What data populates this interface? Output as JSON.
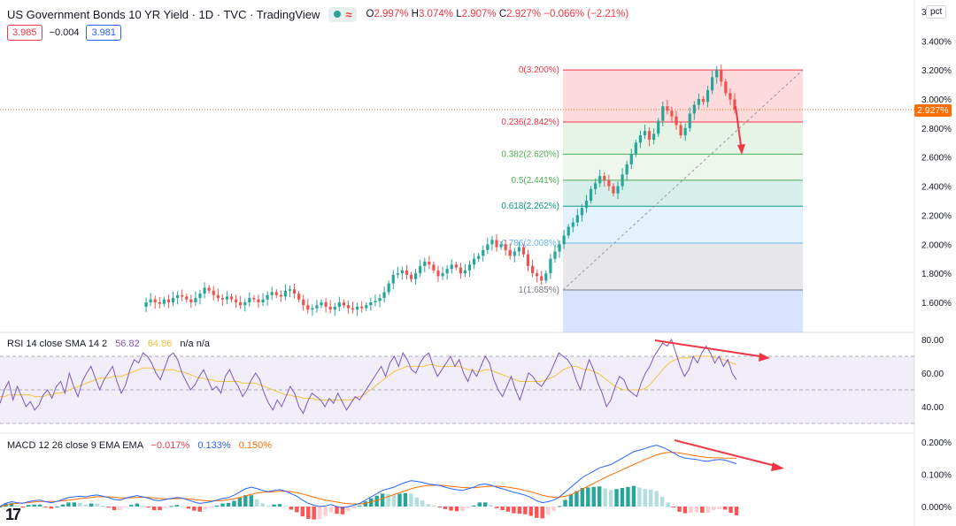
{
  "header": {
    "title": "US Government Bonds 10 YR Yield · 1D · TVC · TradingView",
    "ohlc": {
      "o_label": "O",
      "o": "2.997%",
      "h_label": "H",
      "h": "3.074%",
      "l_label": "L",
      "l": "2.907%",
      "c_label": "C",
      "c": "2.927%",
      "change": "−0.066% (−2.21%)"
    },
    "bid": "3.985",
    "spread": "−0.004",
    "ask": "3.981",
    "scale_mode": "pct",
    "last_label": "2.927%"
  },
  "rsi_legend": {
    "name": "RSI 14 close SMA 14 2",
    "rsi": "56.82",
    "sma": "64.86",
    "extra": "n/a  n/a"
  },
  "macd_legend": {
    "name": "MACD 12 26 close 9 EMA EMA",
    "hist": "−0.017%",
    "macd": "0.133%",
    "signal": "0.150%"
  },
  "colors": {
    "up": "#26a69a",
    "down": "#ef5350",
    "rsi": "#7e57c2",
    "rsi_ma": "#f5c242",
    "macd": "#2962ff",
    "signal": "#ff6d00",
    "arrow": "#f23645"
  },
  "chart_data": [
    {
      "type": "candlestick",
      "price_axis": {
        "ticks": [
          "3.400%",
          "3.200%",
          "3.000%",
          "2.800%",
          "2.600%",
          "2.400%",
          "2.200%",
          "2.000%",
          "1.800%",
          "1.600%"
        ],
        "ylim": [
          1.5,
          3.5
        ],
        "top_partial": "3"
      },
      "close_path": [
        1.57,
        1.6,
        1.62,
        1.6,
        1.59,
        1.62,
        1.6,
        1.63,
        1.65,
        1.64,
        1.62,
        1.6,
        1.63,
        1.66,
        1.7,
        1.68,
        1.65,
        1.63,
        1.62,
        1.64,
        1.62,
        1.6,
        1.58,
        1.6,
        1.63,
        1.62,
        1.6,
        1.62,
        1.65,
        1.67,
        1.65,
        1.64,
        1.68,
        1.69,
        1.66,
        1.62,
        1.58,
        1.55,
        1.56,
        1.58,
        1.6,
        1.57,
        1.55,
        1.57,
        1.6,
        1.58,
        1.56,
        1.55,
        1.57,
        1.56,
        1.58,
        1.6,
        1.61,
        1.63,
        1.67,
        1.73,
        1.79,
        1.8,
        1.82,
        1.79,
        1.76,
        1.8,
        1.85,
        1.88,
        1.86,
        1.82,
        1.78,
        1.8,
        1.83,
        1.86,
        1.84,
        1.8,
        1.82,
        1.86,
        1.9,
        1.92,
        1.96,
        2.0,
        2.03,
        1.98,
        2.0,
        1.96,
        1.92,
        1.95,
        1.98,
        1.93,
        1.85,
        1.8,
        1.78,
        1.75,
        1.8,
        1.9,
        1.95,
        2.0,
        2.06,
        2.12,
        2.15,
        2.2,
        2.25,
        2.3,
        2.38,
        2.42,
        2.47,
        2.44,
        2.4,
        2.35,
        2.4,
        2.48,
        2.55,
        2.62,
        2.7,
        2.75,
        2.78,
        2.72,
        2.76,
        2.85,
        2.95,
        2.92,
        2.88,
        2.82,
        2.75,
        2.8,
        2.9,
        2.96,
        3.0,
        2.98,
        3.06,
        3.15,
        3.2,
        3.12,
        3.04,
        2.997,
        2.927
      ],
      "fibonacci": {
        "levels": [
          {
            "ratio": "0",
            "price": "3.200%",
            "value": 3.2,
            "color": "#f23645",
            "label": "0(3.200%)"
          },
          {
            "ratio": "0.236",
            "price": "2.842%",
            "value": 2.842,
            "color": "#f23645",
            "label": "0.236(2.842%)"
          },
          {
            "ratio": "0.382",
            "price": "2.620%",
            "value": 2.62,
            "color": "#4caf50",
            "label": "0.382(2.620%)"
          },
          {
            "ratio": "0.5",
            "price": "2.441%",
            "value": 2.441,
            "color": "#4caf50",
            "label": "0.5(2.441%)"
          },
          {
            "ratio": "0.618",
            "price": "2.262%",
            "value": 2.262,
            "color": "#089981",
            "label": "0.618(2.262%)"
          },
          {
            "ratio": "0.786",
            "price": "2.008%",
            "value": 2.008,
            "color": "#64b5f6",
            "label": "0.786(2.008%)"
          },
          {
            "ratio": "1",
            "price": "1.685%",
            "value": 1.685,
            "color": "#787b86",
            "label": "1(1.685%)"
          }
        ]
      }
    },
    {
      "type": "line",
      "name": "RSI",
      "axis_ticks": [
        "80.00",
        "60.00",
        "40.00"
      ],
      "ylim": [
        30,
        85
      ],
      "bands": [
        70,
        50,
        30
      ],
      "rsi": [
        42,
        50,
        55,
        44,
        52,
        46,
        40,
        43,
        38,
        41,
        47,
        50,
        45,
        52,
        55,
        48,
        60,
        52,
        46,
        55,
        60,
        64,
        57,
        50,
        56,
        60,
        64,
        55,
        48,
        53,
        62,
        68,
        66,
        72,
        70,
        66,
        60,
        56,
        63,
        70,
        72,
        68,
        60,
        55,
        50,
        53,
        58,
        62,
        56,
        50,
        52,
        48,
        58,
        62,
        56,
        52,
        46,
        50,
        56,
        60,
        56,
        48,
        42,
        38,
        44,
        40,
        46,
        52,
        48,
        40,
        36,
        43,
        48,
        46,
        44,
        40,
        45,
        42,
        48,
        43,
        38,
        42,
        46,
        44,
        48,
        52,
        56,
        60,
        64,
        58,
        66,
        70,
        64,
        72,
        68,
        62,
        60,
        66,
        70,
        72,
        64,
        58,
        62,
        66,
        70,
        64,
        68,
        60,
        55,
        62,
        58,
        64,
        70,
        66,
        56,
        50,
        46,
        52,
        58,
        50,
        44,
        52,
        60,
        58,
        54,
        52,
        56,
        60,
        66,
        72,
        70,
        68,
        64,
        56,
        50,
        60,
        68,
        62,
        54,
        48,
        40,
        44,
        52,
        58,
        56,
        50,
        48,
        46,
        54,
        60,
        64,
        70,
        74,
        78,
        76,
        80,
        72,
        64,
        58,
        62,
        70,
        66,
        72,
        76,
        72,
        66,
        70,
        64,
        68,
        60,
        56
      ],
      "rsi_ma": [
        46,
        46,
        47,
        47,
        47,
        47,
        47,
        47,
        46,
        46,
        46,
        47,
        47,
        48,
        48,
        49,
        50,
        51,
        52,
        53,
        54,
        55,
        56,
        57,
        57,
        57,
        58,
        58,
        58,
        59,
        60,
        61,
        62,
        63,
        63,
        63,
        62,
        62,
        62,
        62,
        62,
        61,
        61,
        60,
        59,
        58,
        57,
        57,
        56,
        56,
        55,
        55,
        55,
        55,
        55,
        55,
        54,
        54,
        54,
        54,
        53,
        52,
        51,
        50,
        49,
        48,
        47,
        47,
        46,
        46,
        45,
        45,
        45,
        44,
        44,
        44,
        44,
        44,
        44,
        44,
        44,
        44,
        45,
        46,
        47,
        49,
        51,
        53,
        55,
        57,
        59,
        61,
        62,
        63,
        64,
        64,
        64,
        64,
        64,
        65,
        65,
        64,
        64,
        64,
        64,
        64,
        64,
        63,
        62,
        62,
        61,
        61,
        62,
        62,
        61,
        60,
        59,
        58,
        57,
        56,
        55,
        55,
        55,
        55,
        55,
        55,
        56,
        57,
        58,
        60,
        62,
        63,
        64,
        64,
        63,
        62,
        62,
        61,
        60,
        58,
        56,
        54,
        52,
        51,
        50,
        50,
        50,
        50,
        50,
        51,
        53,
        56,
        59,
        62,
        65,
        67,
        68,
        69,
        69,
        69,
        70,
        70,
        70,
        70,
        70,
        69,
        69,
        68,
        67,
        66,
        65
      ]
    },
    {
      "type": "line",
      "name": "MACD",
      "axis_ticks": [
        "0.200%",
        "0.100%",
        "0.000%"
      ],
      "ylim": [
        -0.05,
        0.22
      ],
      "macd": [
        0.0,
        0.01,
        0.015,
        0.012,
        0.01,
        0.015,
        0.018,
        0.02,
        0.015,
        0.012,
        0.016,
        0.022,
        0.028,
        0.03,
        0.032,
        0.03,
        0.034,
        0.036,
        0.032,
        0.028,
        0.022,
        0.02,
        0.026,
        0.03,
        0.034,
        0.03,
        0.026,
        0.02,
        0.018,
        0.022,
        0.025,
        0.028,
        0.026,
        0.02,
        0.014,
        0.01,
        0.012,
        0.015,
        0.02,
        0.025,
        0.028,
        0.035,
        0.045,
        0.055,
        0.06,
        0.056,
        0.05,
        0.046,
        0.05,
        0.052,
        0.048,
        0.04,
        0.032,
        0.02,
        0.01,
        0.004,
        0.0,
        0.002,
        0.006,
        0.0,
        -0.004,
        0.0,
        0.004,
        0.01,
        0.02,
        0.03,
        0.04,
        0.05,
        0.055,
        0.06,
        0.068,
        0.075,
        0.08,
        0.078,
        0.075,
        0.07,
        0.068,
        0.065,
        0.06,
        0.055,
        0.052,
        0.05,
        0.055,
        0.06,
        0.068,
        0.07,
        0.066,
        0.06,
        0.055,
        0.05,
        0.044,
        0.04,
        0.035,
        0.028,
        0.018,
        0.012,
        0.015,
        0.02,
        0.03,
        0.045,
        0.06,
        0.075,
        0.09,
        0.1,
        0.11,
        0.12,
        0.125,
        0.13,
        0.14,
        0.15,
        0.16,
        0.17,
        0.175,
        0.18,
        0.186,
        0.19,
        0.184,
        0.176,
        0.166,
        0.156,
        0.15,
        0.148,
        0.146,
        0.142,
        0.14,
        0.144,
        0.146,
        0.144,
        0.138,
        0.133
      ],
      "signal": [
        0.0,
        0.004,
        0.008,
        0.01,
        0.011,
        0.012,
        0.014,
        0.016,
        0.016,
        0.016,
        0.016,
        0.018,
        0.02,
        0.022,
        0.025,
        0.026,
        0.028,
        0.03,
        0.03,
        0.03,
        0.029,
        0.027,
        0.027,
        0.027,
        0.028,
        0.029,
        0.028,
        0.027,
        0.025,
        0.024,
        0.024,
        0.025,
        0.025,
        0.024,
        0.022,
        0.02,
        0.018,
        0.017,
        0.018,
        0.019,
        0.021,
        0.024,
        0.028,
        0.033,
        0.038,
        0.042,
        0.044,
        0.045,
        0.046,
        0.047,
        0.047,
        0.046,
        0.043,
        0.039,
        0.034,
        0.029,
        0.024,
        0.02,
        0.017,
        0.014,
        0.011,
        0.009,
        0.008,
        0.008,
        0.01,
        0.014,
        0.019,
        0.025,
        0.031,
        0.037,
        0.043,
        0.049,
        0.055,
        0.06,
        0.063,
        0.065,
        0.066,
        0.066,
        0.065,
        0.063,
        0.061,
        0.059,
        0.058,
        0.058,
        0.06,
        0.062,
        0.063,
        0.063,
        0.062,
        0.06,
        0.057,
        0.054,
        0.05,
        0.046,
        0.04,
        0.035,
        0.031,
        0.029,
        0.029,
        0.032,
        0.037,
        0.045,
        0.054,
        0.063,
        0.072,
        0.081,
        0.09,
        0.098,
        0.106,
        0.114,
        0.122,
        0.13,
        0.138,
        0.146,
        0.153,
        0.16,
        0.165,
        0.168,
        0.168,
        0.166,
        0.163,
        0.16,
        0.157,
        0.154,
        0.152,
        0.151,
        0.151,
        0.15,
        0.15,
        0.15
      ]
    }
  ]
}
